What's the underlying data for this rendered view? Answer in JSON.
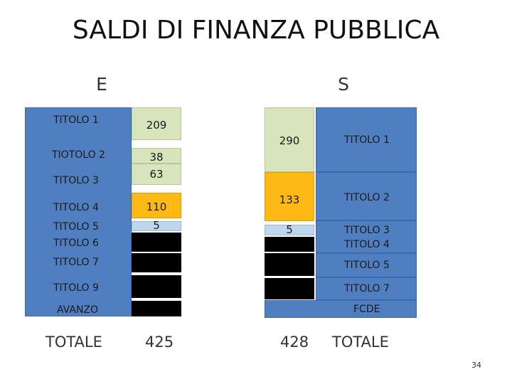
{
  "title": "SALDI DI FINANZA PUBBLICA",
  "entrate": {
    "header": "E",
    "labels": {
      "t1": "TITOLO 1",
      "t2": "TIOTOLO 2",
      "t3": "TITOLO 3",
      "t4": "TITOLO 4",
      "t5": "TITOLO 5",
      "t6": "TITOLO 6",
      "t7": "TITOLO 7",
      "t9": "TITOLO 9",
      "avanzo": "AVANZO"
    },
    "values": {
      "t1": "209",
      "t2": "38",
      "t3": "63",
      "t4": "110",
      "t5": "5"
    },
    "total_label": "TOTALE",
    "total_value": "425"
  },
  "spese": {
    "header": "S",
    "labels": {
      "t1": "TITOLO 1",
      "t2": "TITOLO 2",
      "t3": "TITOLO 3",
      "t4": "TITOLO 4",
      "t5": "TITOLO 5",
      "t7": "TITOLO 7",
      "fcde": "FCDE"
    },
    "values": {
      "t1": "290",
      "t2": "133",
      "t3": "5"
    },
    "total_label": "TOTALE",
    "total_value": "428"
  },
  "page_number": "34",
  "colors": {
    "blue": "#4f7fc0",
    "green": "#d8e4bc",
    "orange": "#ffb915",
    "light_blue": "#bfd7ee",
    "black": "#000000"
  }
}
